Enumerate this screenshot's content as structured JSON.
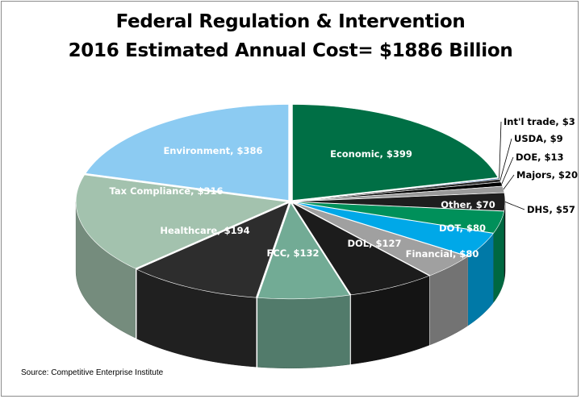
{
  "source": "Source: Competitive Enterprise Institute",
  "chart_data": {
    "type": "pie",
    "title": "Federal Regulation & Intervention",
    "subtitle": "2016 Estimated Annual Cost= $1886 Billion",
    "categories": [
      "Economic",
      "Int'l trade",
      "USDA",
      "DOE",
      "Majors",
      "DHS",
      "Other",
      "DOT",
      "Financial",
      "DOL",
      "FCC",
      "Healthcare",
      "Tax Compliance",
      "Environment"
    ],
    "values": [
      399,
      3,
      9,
      13,
      20,
      57,
      70,
      80,
      80,
      127,
      132,
      194,
      316,
      386
    ],
    "labels": [
      "Economic, $399",
      "Int'l trade, $3",
      "USDA, $9",
      "DOE, $13",
      "Majors, $20",
      "DHS, $57",
      "Other, $70",
      "DOT, $80",
      "Financial, $80",
      "DOL, $127",
      "FCC, $132",
      "Healthcare, $194",
      "Tax Compliance, $316",
      "Environment, $386"
    ],
    "colors": [
      "#006f45",
      "#1f5fa8",
      "#2a2a2a",
      "#000000",
      "#9a9a9a",
      "#1e1e1e",
      "#00905a",
      "#00a8e8",
      "#a0a0a0",
      "#1c1c1c",
      "#72ab95",
      "#2d2d2d",
      "#a3c2ae",
      "#8ccbf2"
    ],
    "legend": "none",
    "style": "3d-exploded"
  }
}
